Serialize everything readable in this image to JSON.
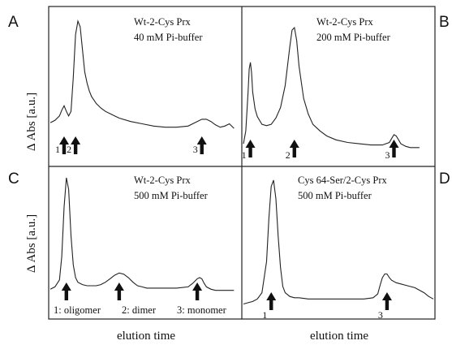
{
  "figure": {
    "ylabel": "Δ Abs [a.u.]",
    "xlabel": "elution time",
    "colors": {
      "trace": "#222222",
      "frame": "#222222",
      "arrow": "#111111"
    }
  },
  "chart_data": [
    {
      "type": "line",
      "panel": "A",
      "annotation": [
        "Wt-2-Cys Prx",
        "40 mM Pi-buffer"
      ],
      "x": [
        0,
        2,
        4,
        5,
        6,
        7,
        8,
        9,
        10,
        11,
        12,
        13,
        14,
        15,
        16,
        17,
        18,
        19,
        20,
        22,
        24,
        26,
        28,
        30,
        35,
        40,
        45,
        50,
        55,
        60,
        63,
        66,
        68,
        70,
        72,
        74,
        76,
        78,
        80
      ],
      "y": [
        0.1,
        0.12,
        0.16,
        0.21,
        0.25,
        0.2,
        0.16,
        0.2,
        0.5,
        0.88,
        1.0,
        0.95,
        0.75,
        0.55,
        0.45,
        0.38,
        0.33,
        0.3,
        0.27,
        0.23,
        0.2,
        0.18,
        0.16,
        0.14,
        0.11,
        0.09,
        0.07,
        0.06,
        0.06,
        0.07,
        0.1,
        0.13,
        0.13,
        0.11,
        0.08,
        0.06,
        0.07,
        0.09,
        0.05
      ],
      "peaks": [
        {
          "label": "1",
          "x": 6
        },
        {
          "label": "2",
          "x": 11
        },
        {
          "label": "3",
          "x": 66
        }
      ]
    },
    {
      "type": "line",
      "panel": "B",
      "annotation": [
        "Wt-2-Cys Prx",
        "200 mM Pi-buffer"
      ],
      "x": [
        0,
        1,
        2,
        2.5,
        3,
        3.5,
        4,
        5,
        6,
        8,
        10,
        12,
        14,
        16,
        18,
        20,
        21,
        22,
        23,
        24,
        26,
        28,
        30,
        33,
        36,
        40,
        45,
        50,
        55,
        60,
        63,
        64,
        65,
        66,
        67,
        68,
        70,
        72,
        74,
        76
      ],
      "y": [
        0.05,
        0.15,
        0.45,
        0.63,
        0.68,
        0.6,
        0.45,
        0.32,
        0.26,
        0.2,
        0.19,
        0.2,
        0.25,
        0.33,
        0.5,
        0.8,
        0.93,
        0.95,
        0.85,
        0.65,
        0.4,
        0.28,
        0.2,
        0.15,
        0.11,
        0.08,
        0.06,
        0.05,
        0.04,
        0.04,
        0.06,
        0.09,
        0.12,
        0.11,
        0.08,
        0.05,
        0.03,
        0.02,
        0.02,
        0.02
      ],
      "peaks": [
        {
          "label": "1",
          "x": 3
        },
        {
          "label": "2",
          "x": 22
        },
        {
          "label": "3",
          "x": 65
        }
      ]
    },
    {
      "type": "line",
      "panel": "C",
      "annotation": [
        "Wt-2-Cys Prx",
        "500 mM Pi-buffer"
      ],
      "legend_text": [
        "1: oligomer",
        "2: dimer",
        "3: monomer"
      ],
      "x": [
        0,
        2,
        4,
        5,
        6,
        7,
        8,
        9,
        10,
        11,
        12,
        14,
        16,
        18,
        20,
        22,
        24,
        26,
        28,
        30,
        32,
        34,
        36,
        38,
        40,
        42,
        44,
        46,
        48,
        50,
        55,
        60,
        62,
        64,
        65,
        66,
        67,
        68,
        70,
        72,
        74,
        76,
        78,
        80
      ],
      "y": [
        0.04,
        0.06,
        0.12,
        0.32,
        0.75,
        1.0,
        0.9,
        0.5,
        0.25,
        0.14,
        0.1,
        0.08,
        0.07,
        0.07,
        0.07,
        0.08,
        0.1,
        0.13,
        0.16,
        0.18,
        0.17,
        0.14,
        0.1,
        0.07,
        0.06,
        0.05,
        0.05,
        0.05,
        0.05,
        0.05,
        0.05,
        0.06,
        0.09,
        0.13,
        0.14,
        0.13,
        0.09,
        0.06,
        0.04,
        0.03,
        0.03,
        0.03,
        0.03,
        0.03
      ],
      "peaks": [
        {
          "label": "",
          "x": 7
        },
        {
          "label": "",
          "x": 30
        },
        {
          "label": "",
          "x": 64
        }
      ]
    },
    {
      "type": "line",
      "panel": "D",
      "annotation": [
        "Cys 64-Ser/2-Cys Prx",
        "500 mM Pi-buffer"
      ],
      "x": [
        0,
        2,
        4,
        6,
        8,
        10,
        11,
        12,
        13,
        14,
        15,
        16,
        17,
        18,
        20,
        22,
        24,
        28,
        32,
        36,
        40,
        44,
        48,
        52,
        56,
        58,
        59,
        60,
        61,
        62,
        63,
        64,
        66,
        68,
        70,
        72,
        74,
        76,
        78,
        80,
        82
      ],
      "y": [
        0.01,
        0.02,
        0.03,
        0.05,
        0.1,
        0.35,
        0.7,
        0.95,
        1.0,
        0.85,
        0.55,
        0.3,
        0.15,
        0.1,
        0.07,
        0.06,
        0.06,
        0.05,
        0.05,
        0.05,
        0.05,
        0.05,
        0.05,
        0.05,
        0.06,
        0.09,
        0.16,
        0.22,
        0.25,
        0.25,
        0.22,
        0.2,
        0.18,
        0.17,
        0.16,
        0.15,
        0.14,
        0.12,
        0.1,
        0.07,
        0.05
      ],
      "peaks": [
        {
          "label": "1",
          "x": 12
        },
        {
          "label": "3",
          "x": 62
        }
      ]
    }
  ]
}
